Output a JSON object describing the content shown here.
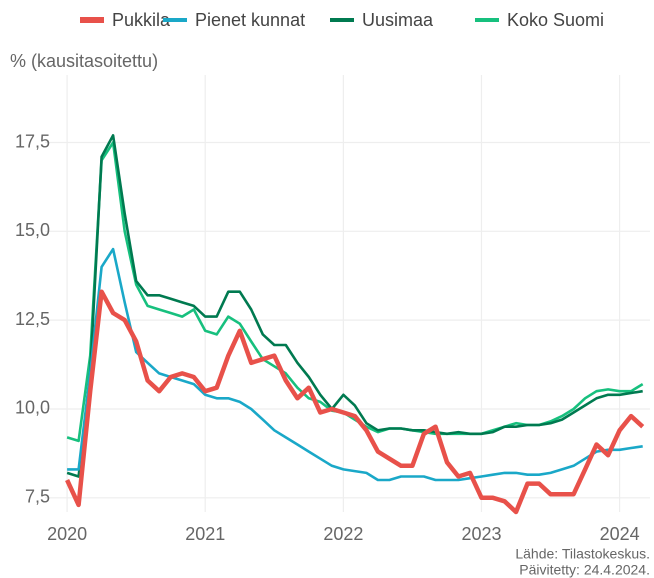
{
  "chart_data": {
    "type": "line",
    "y_label": "% (kausitasoitettu)",
    "source": "Lähde: Tilastokeskus.",
    "updated": "Päivitetty: 24.4.2024.",
    "x": [
      2020,
      2020.083,
      2020.167,
      2020.25,
      2020.333,
      2020.417,
      2020.5,
      2020.583,
      2020.667,
      2020.75,
      2020.833,
      2020.917,
      2021,
      2021.083,
      2021.167,
      2021.25,
      2021.333,
      2021.417,
      2021.5,
      2021.583,
      2021.667,
      2021.75,
      2021.833,
      2021.917,
      2022,
      2022.083,
      2022.167,
      2022.25,
      2022.333,
      2022.417,
      2022.5,
      2022.583,
      2022.667,
      2022.75,
      2022.833,
      2022.917,
      2023,
      2023.083,
      2023.167,
      2023.25,
      2023.333,
      2023.417,
      2023.5,
      2023.583,
      2023.667,
      2023.75,
      2023.833,
      2023.917,
      2024,
      2024.083,
      2024.167
    ],
    "series": [
      {
        "name": "Pukkila",
        "color": "#e8514a",
        "values": [
          8.0,
          7.3,
          10.5,
          13.3,
          12.7,
          12.5,
          11.9,
          10.8,
          10.5,
          10.9,
          11.0,
          10.9,
          10.5,
          10.6,
          11.5,
          12.2,
          11.3,
          11.4,
          11.5,
          10.8,
          10.3,
          10.6,
          9.9,
          10.0,
          9.9,
          9.8,
          9.4,
          8.8,
          8.6,
          8.4,
          8.4,
          9.3,
          9.5,
          8.5,
          8.1,
          8.2,
          7.5,
          7.5,
          7.4,
          7.1,
          7.9,
          7.9,
          7.6,
          7.6,
          7.6,
          8.3,
          9.0,
          8.7,
          9.4,
          9.8,
          9.5
        ]
      },
      {
        "name": "Pienet kunnat",
        "color": "#1aa8c8",
        "values": [
          8.3,
          8.3,
          11.0,
          14.0,
          14.5,
          13.0,
          11.6,
          11.3,
          11.0,
          10.9,
          10.8,
          10.7,
          10.4,
          10.3,
          10.3,
          10.2,
          10.0,
          9.7,
          9.4,
          9.2,
          9.0,
          8.8,
          8.6,
          8.4,
          8.3,
          8.25,
          8.2,
          8.0,
          8.0,
          8.1,
          8.1,
          8.1,
          8.0,
          8.0,
          8.0,
          8.05,
          8.1,
          8.15,
          8.2,
          8.2,
          8.15,
          8.15,
          8.2,
          8.3,
          8.4,
          8.6,
          8.8,
          8.85,
          8.85,
          8.9,
          8.95
        ]
      },
      {
        "name": "Uusimaa",
        "color": "#007a50",
        "values": [
          8.2,
          8.1,
          11.0,
          17.1,
          17.7,
          15.5,
          13.6,
          13.2,
          13.2,
          13.1,
          13.0,
          12.9,
          12.6,
          12.6,
          13.3,
          13.3,
          12.8,
          12.1,
          11.8,
          11.8,
          11.3,
          10.9,
          10.4,
          10.0,
          10.4,
          10.1,
          9.6,
          9.4,
          9.45,
          9.45,
          9.4,
          9.4,
          9.35,
          9.3,
          9.35,
          9.3,
          9.3,
          9.35,
          9.5,
          9.5,
          9.55,
          9.55,
          9.6,
          9.7,
          9.9,
          10.1,
          10.3,
          10.4,
          10.4,
          10.45,
          10.5
        ]
      },
      {
        "name": "Koko Suomi",
        "color": "#17c07e",
        "values": [
          9.2,
          9.1,
          11.5,
          17.0,
          17.5,
          15.0,
          13.5,
          12.9,
          12.8,
          12.7,
          12.6,
          12.8,
          12.2,
          12.1,
          12.6,
          12.4,
          11.9,
          11.4,
          11.2,
          11.0,
          10.6,
          10.3,
          10.2,
          9.95,
          9.9,
          9.7,
          9.5,
          9.35,
          9.45,
          9.45,
          9.4,
          9.35,
          9.3,
          9.3,
          9.3,
          9.3,
          9.3,
          9.4,
          9.5,
          9.6,
          9.55,
          9.55,
          9.65,
          9.8,
          10.0,
          10.3,
          10.5,
          10.55,
          10.5,
          10.5,
          10.7
        ]
      }
    ],
    "xlim": [
      2019.84,
      2024.22
    ],
    "xticks": [
      2020,
      2021,
      2022,
      2023,
      2024
    ],
    "ylim": [
      7.1,
      19.4
    ],
    "yticks": [
      {
        "value": 7.5,
        "label": "7,5"
      },
      {
        "value": 10,
        "label": "10,0"
      },
      {
        "value": 12.5,
        "label": "12,5"
      },
      {
        "value": 15,
        "label": "15,0"
      },
      {
        "value": 17.5,
        "label": "17,5"
      }
    ],
    "grid": true,
    "legend": "top"
  }
}
